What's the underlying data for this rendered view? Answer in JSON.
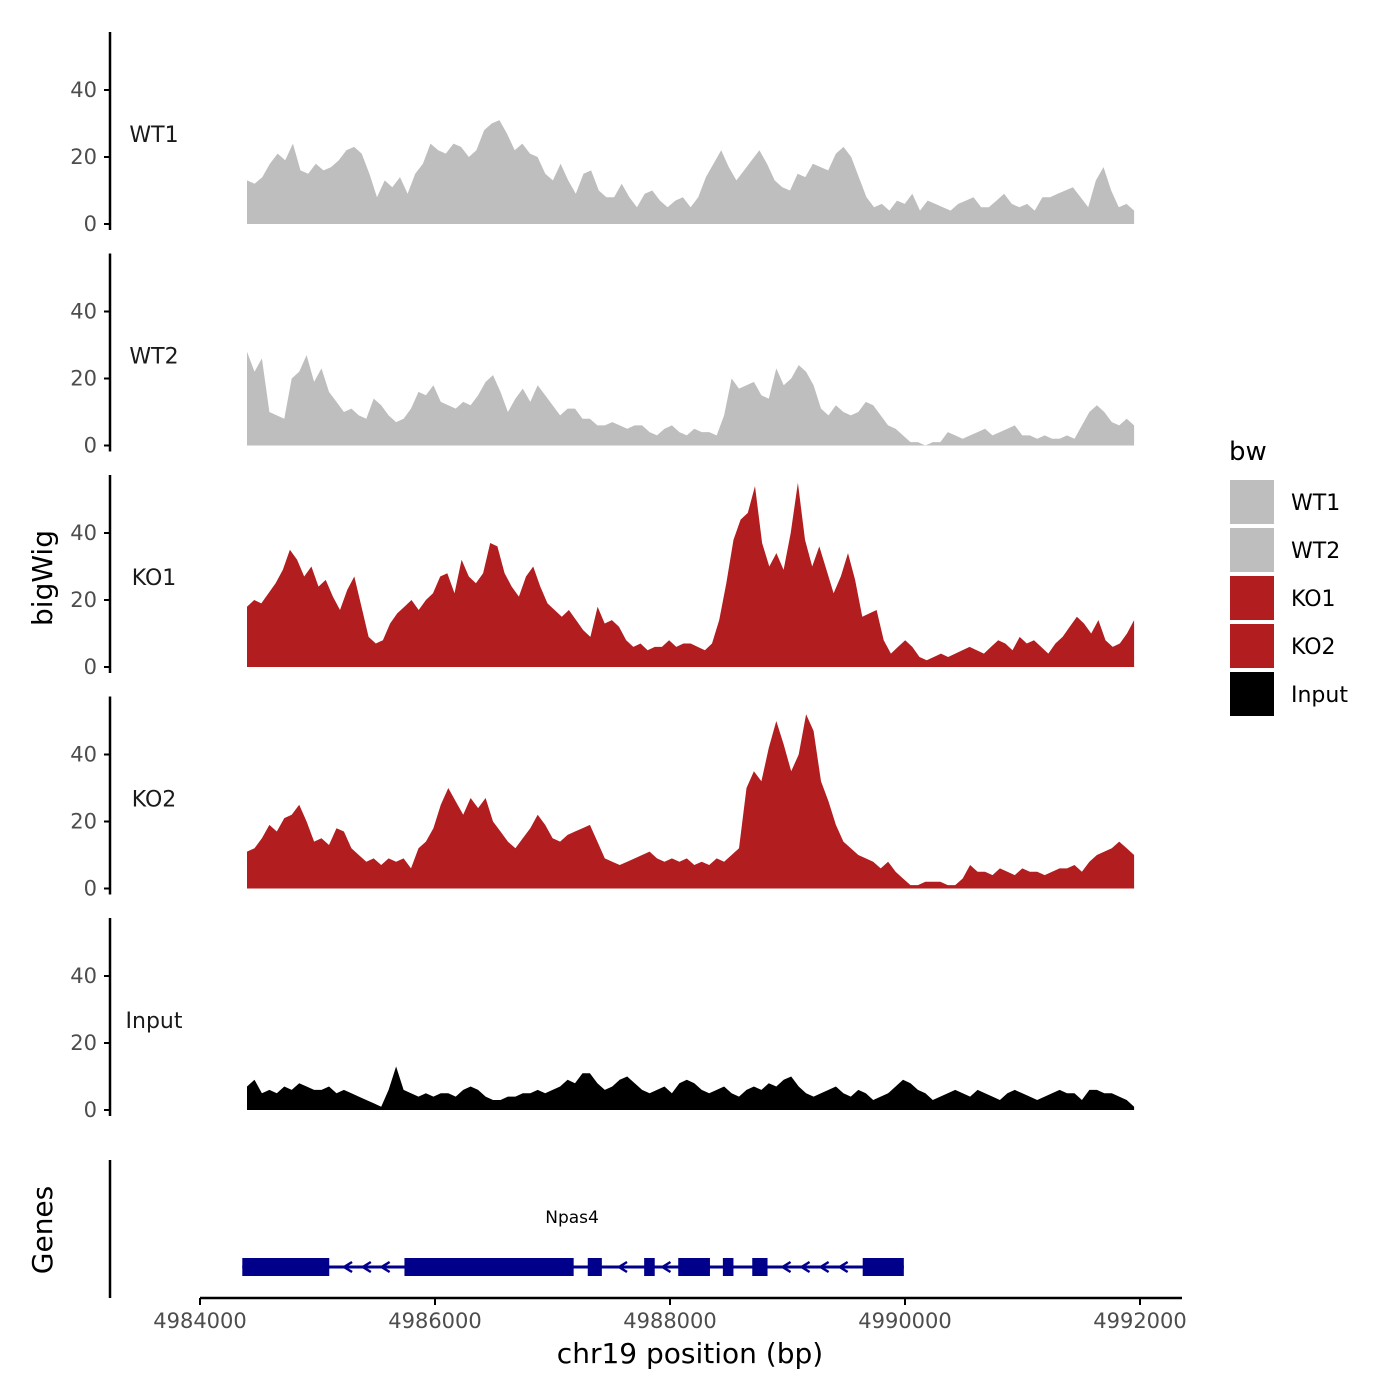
{
  "chart_data": {
    "type": "area",
    "ylabel": "bigWig",
    "xlabel": "chr19 position (bp)",
    "genes_label": "Genes",
    "ylim": [
      0,
      58
    ],
    "yticks": [
      0,
      20,
      40
    ],
    "xlim": [
      4983700,
      4992300
    ],
    "xticks": [
      4984000,
      4986000,
      4988000,
      4990000,
      4992000
    ],
    "xtick_labels": [
      "4984000",
      "4986000",
      "4988000",
      "4990000",
      "4992000"
    ],
    "x_start": 4984400,
    "x_end": 4991950,
    "legend": {
      "title": "bw",
      "position": "right",
      "entries": [
        {
          "label": "WT1",
          "color": "#bebebe"
        },
        {
          "label": "WT2",
          "color": "#bebebe"
        },
        {
          "label": "KO1",
          "color": "#b21d1f"
        },
        {
          "label": "KO2",
          "color": "#b21d1f"
        },
        {
          "label": "Input",
          "color": "#000000"
        }
      ]
    },
    "series": [
      {
        "name": "WT1",
        "color": "#bebebe",
        "values": [
          13,
          12,
          14,
          18,
          21,
          19,
          24,
          16,
          15,
          18,
          16,
          17,
          19,
          22,
          23,
          21,
          15,
          8,
          13,
          11,
          14,
          9,
          15,
          18,
          24,
          22,
          21,
          24,
          23,
          20,
          22,
          28,
          30,
          31,
          27,
          22,
          24,
          21,
          20,
          15,
          13,
          18,
          13,
          9,
          15,
          16,
          10,
          8,
          8,
          12,
          8,
          5,
          9,
          10,
          7,
          5,
          7,
          8,
          5,
          8,
          14,
          18,
          22,
          17,
          13,
          16,
          19,
          22,
          18,
          13,
          11,
          10,
          15,
          14,
          18,
          17,
          16,
          21,
          23,
          20,
          14,
          8,
          5,
          6,
          4,
          7,
          6,
          9,
          4,
          7,
          6,
          5,
          4,
          6,
          7,
          8,
          5,
          5,
          7,
          9,
          6,
          5,
          6,
          4,
          8,
          8,
          9,
          10,
          11,
          8,
          5,
          13,
          17,
          10,
          5,
          6,
          4
        ]
      },
      {
        "name": "WT2",
        "color": "#bebebe",
        "values": [
          28,
          22,
          26,
          10,
          9,
          8,
          20,
          22,
          27,
          19,
          23,
          16,
          13,
          10,
          11,
          9,
          8,
          14,
          12,
          9,
          7,
          8,
          11,
          16,
          15,
          18,
          13,
          12,
          11,
          13,
          12,
          15,
          19,
          21,
          16,
          10,
          14,
          17,
          13,
          18,
          15,
          12,
          9,
          11,
          11,
          8,
          8,
          6,
          6,
          7,
          6,
          5,
          6,
          6,
          4,
          3,
          5,
          6,
          4,
          3,
          5,
          4,
          4,
          3,
          9,
          20,
          17,
          18,
          19,
          15,
          14,
          23,
          18,
          20,
          24,
          22,
          18,
          11,
          9,
          12,
          10,
          9,
          10,
          13,
          12,
          9,
          6,
          5,
          3,
          1,
          1,
          0,
          1,
          1,
          4,
          3,
          2,
          3,
          4,
          5,
          3,
          4,
          5,
          6,
          3,
          3,
          2,
          3,
          2,
          2,
          3,
          2,
          6,
          10,
          12,
          10,
          7,
          6,
          8,
          6
        ]
      },
      {
        "name": "KO1",
        "color": "#b21d1f",
        "values": [
          18,
          20,
          19,
          22,
          25,
          29,
          35,
          32,
          27,
          30,
          24,
          26,
          21,
          17,
          23,
          27,
          18,
          9,
          7,
          8,
          13,
          16,
          18,
          20,
          17,
          20,
          22,
          27,
          28,
          22,
          32,
          27,
          25,
          28,
          37,
          36,
          28,
          24,
          21,
          27,
          30,
          24,
          19,
          17,
          15,
          17,
          14,
          11,
          9,
          18,
          13,
          14,
          12,
          8,
          6,
          7,
          5,
          6,
          6,
          8,
          6,
          7,
          7,
          6,
          5,
          7,
          14,
          25,
          38,
          44,
          46,
          54,
          37,
          30,
          34,
          29,
          40,
          55,
          38,
          30,
          36,
          29,
          22,
          27,
          34,
          26,
          15,
          16,
          17,
          8,
          4,
          6,
          8,
          6,
          3,
          2,
          3,
          4,
          3,
          4,
          5,
          6,
          5,
          4,
          6,
          8,
          7,
          5,
          9,
          7,
          8,
          6,
          4,
          7,
          9,
          12,
          15,
          13,
          10,
          14,
          8,
          6,
          7,
          10,
          14
        ]
      },
      {
        "name": "KO2",
        "color": "#b21d1f",
        "values": [
          11,
          12,
          15,
          19,
          17,
          21,
          22,
          25,
          20,
          14,
          15,
          13,
          18,
          17,
          12,
          10,
          8,
          9,
          7,
          9,
          8,
          9,
          6,
          12,
          14,
          18,
          25,
          30,
          26,
          22,
          27,
          24,
          27,
          20,
          17,
          14,
          12,
          15,
          18,
          22,
          19,
          15,
          14,
          16,
          17,
          18,
          19,
          14,
          9,
          8,
          7,
          8,
          9,
          10,
          11,
          9,
          8,
          9,
          8,
          9,
          7,
          8,
          7,
          9,
          8,
          10,
          12,
          30,
          35,
          32,
          42,
          50,
          43,
          35,
          40,
          52,
          47,
          32,
          26,
          19,
          14,
          12,
          10,
          9,
          8,
          6,
          8,
          5,
          3,
          1,
          1,
          2,
          2,
          2,
          1,
          1,
          3,
          7,
          5,
          5,
          4,
          6,
          5,
          4,
          6,
          5,
          5,
          4,
          5,
          6,
          6,
          7,
          5,
          8,
          10,
          11,
          12,
          14,
          12,
          10
        ]
      },
      {
        "name": "Input",
        "color": "#000000",
        "values": [
          7,
          9,
          5,
          6,
          5,
          7,
          6,
          8,
          7,
          6,
          6,
          7,
          5,
          6,
          5,
          4,
          3,
          2,
          1,
          6,
          13,
          6,
          5,
          4,
          5,
          4,
          5,
          5,
          4,
          6,
          7,
          6,
          4,
          3,
          3,
          4,
          4,
          5,
          5,
          6,
          5,
          6,
          7,
          9,
          8,
          11,
          11,
          8,
          6,
          7,
          9,
          10,
          8,
          6,
          5,
          6,
          7,
          5,
          8,
          9,
          8,
          6,
          5,
          6,
          7,
          5,
          4,
          6,
          7,
          6,
          8,
          7,
          9,
          10,
          7,
          5,
          4,
          5,
          6,
          7,
          5,
          4,
          6,
          5,
          3,
          4,
          5,
          7,
          9,
          8,
          6,
          5,
          3,
          4,
          5,
          6,
          5,
          4,
          6,
          5,
          4,
          3,
          5,
          6,
          5,
          4,
          3,
          4,
          5,
          6,
          5,
          5,
          3,
          6,
          6,
          5,
          5,
          4,
          3,
          1
        ]
      }
    ],
    "gene": {
      "name": "Npas4",
      "strand": "-",
      "start": 4984360,
      "end": 4989990,
      "exons": [
        [
          4984360,
          4985100
        ],
        [
          4985740,
          4987180
        ],
        [
          4987300,
          4987420
        ],
        [
          4987780,
          4987870
        ],
        [
          4988070,
          4988340
        ],
        [
          4988450,
          4988540
        ],
        [
          4988700,
          4988830
        ],
        [
          4989640,
          4989990
        ]
      ],
      "color": "#00008b"
    }
  }
}
